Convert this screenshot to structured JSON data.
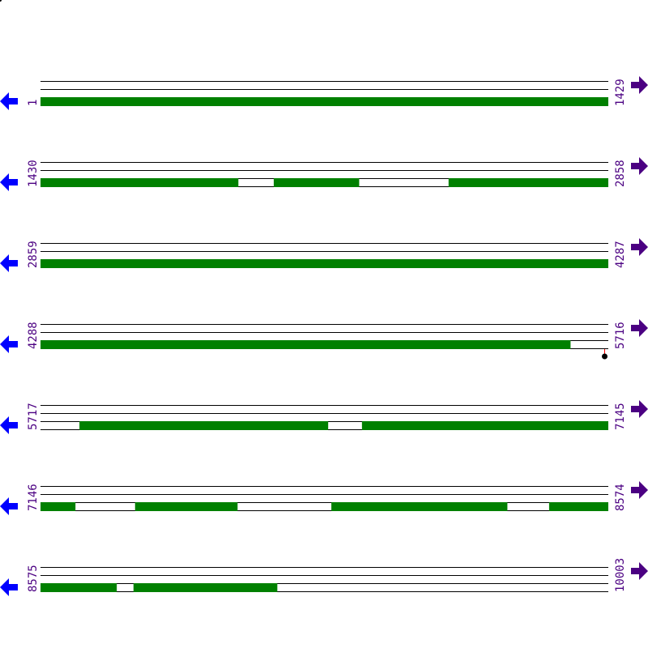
{
  "colors": {
    "gene": "#008000",
    "track_line": "#000000",
    "label": "#4b0082",
    "left_arrow": "#0000ff",
    "right_arrow": "#4b0082",
    "marker_stem": "#ff0000",
    "marker_head": "#000000"
  },
  "icons": {
    "left": "arrow-left-icon",
    "right": "arrow-right-icon"
  },
  "rows": [
    {
      "start": "1",
      "end": "1429",
      "s": 1,
      "e": 1429,
      "genes": [
        [
          1,
          1429
        ]
      ]
    },
    {
      "start": "1430",
      "end": "2858",
      "s": 1430,
      "e": 2858,
      "genes": [
        [
          1430,
          1927
        ],
        [
          2017,
          2231
        ],
        [
          2457,
          2858
        ]
      ]
    },
    {
      "start": "2859",
      "end": "4287",
      "s": 2859,
      "e": 4287,
      "genes": [
        [
          2859,
          4287
        ]
      ]
    },
    {
      "start": "4288",
      "end": "5716",
      "s": 4288,
      "e": 5716,
      "genes": [
        [
          4288,
          5621
        ]
      ],
      "markers": [
        5707
      ]
    },
    {
      "start": "5717",
      "end": "7145",
      "s": 5717,
      "e": 7145,
      "genes": [
        [
          5815,
          6440
        ],
        [
          6526,
          7145
        ]
      ]
    },
    {
      "start": "7146",
      "end": "8574",
      "s": 7146,
      "e": 8574,
      "genes": [
        [
          7146,
          7233
        ],
        [
          7384,
          7641
        ],
        [
          7878,
          8320
        ],
        [
          8426,
          8574
        ]
      ]
    },
    {
      "start": "8575",
      "end": "10003",
      "s": 8575,
      "e": 10003,
      "genes": [
        [
          8575,
          8766
        ],
        [
          8809,
          9170
        ]
      ]
    }
  ]
}
